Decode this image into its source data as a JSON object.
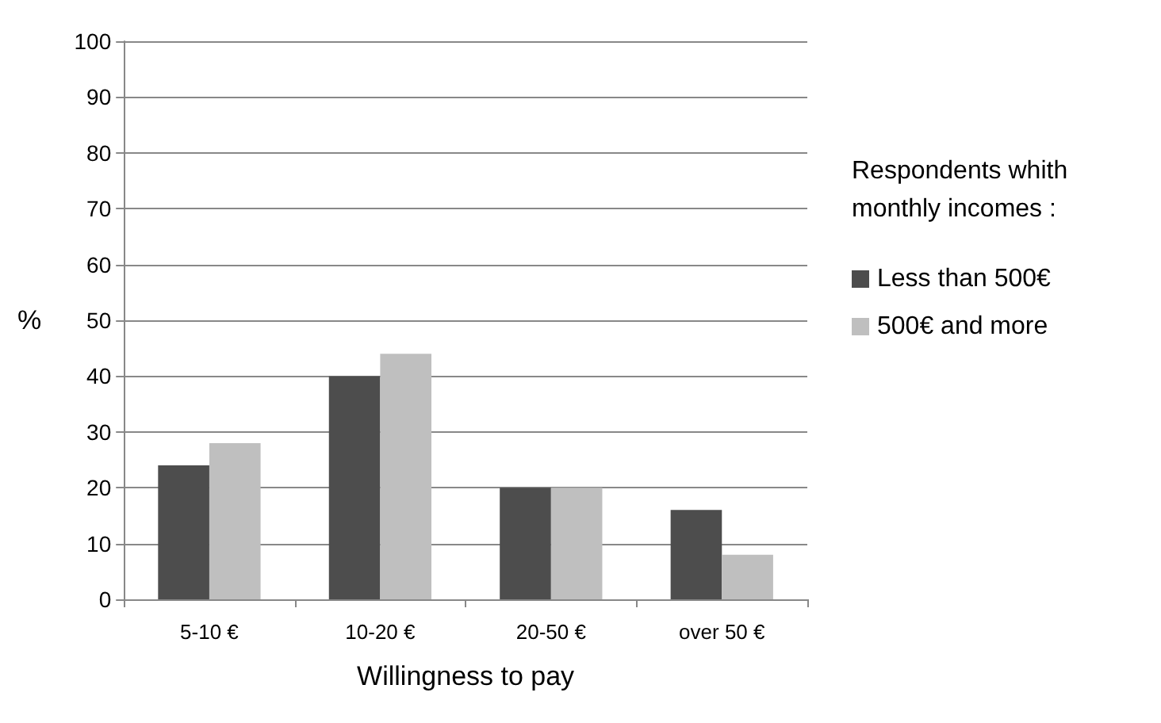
{
  "chart_data": {
    "type": "bar",
    "xlabel": "Willingness to pay",
    "ylabel": "%",
    "legend_title": "Respondents whith monthly incomes :",
    "categories": [
      "5-10 €",
      "10-20 €",
      "20-50 €",
      "over 50 €"
    ],
    "series": [
      {
        "name": "Less than 500€",
        "color": "#4d4d4d",
        "values": [
          24,
          40,
          20,
          16
        ]
      },
      {
        "name": "500€ and more",
        "color": "#bfbfbf",
        "values": [
          28,
          44,
          20,
          8
        ]
      }
    ],
    "ylim": [
      0,
      100
    ],
    "yticks": [
      0,
      10,
      20,
      30,
      40,
      50,
      60,
      70,
      80,
      90,
      100
    ],
    "grid": "y",
    "legend": "right"
  }
}
